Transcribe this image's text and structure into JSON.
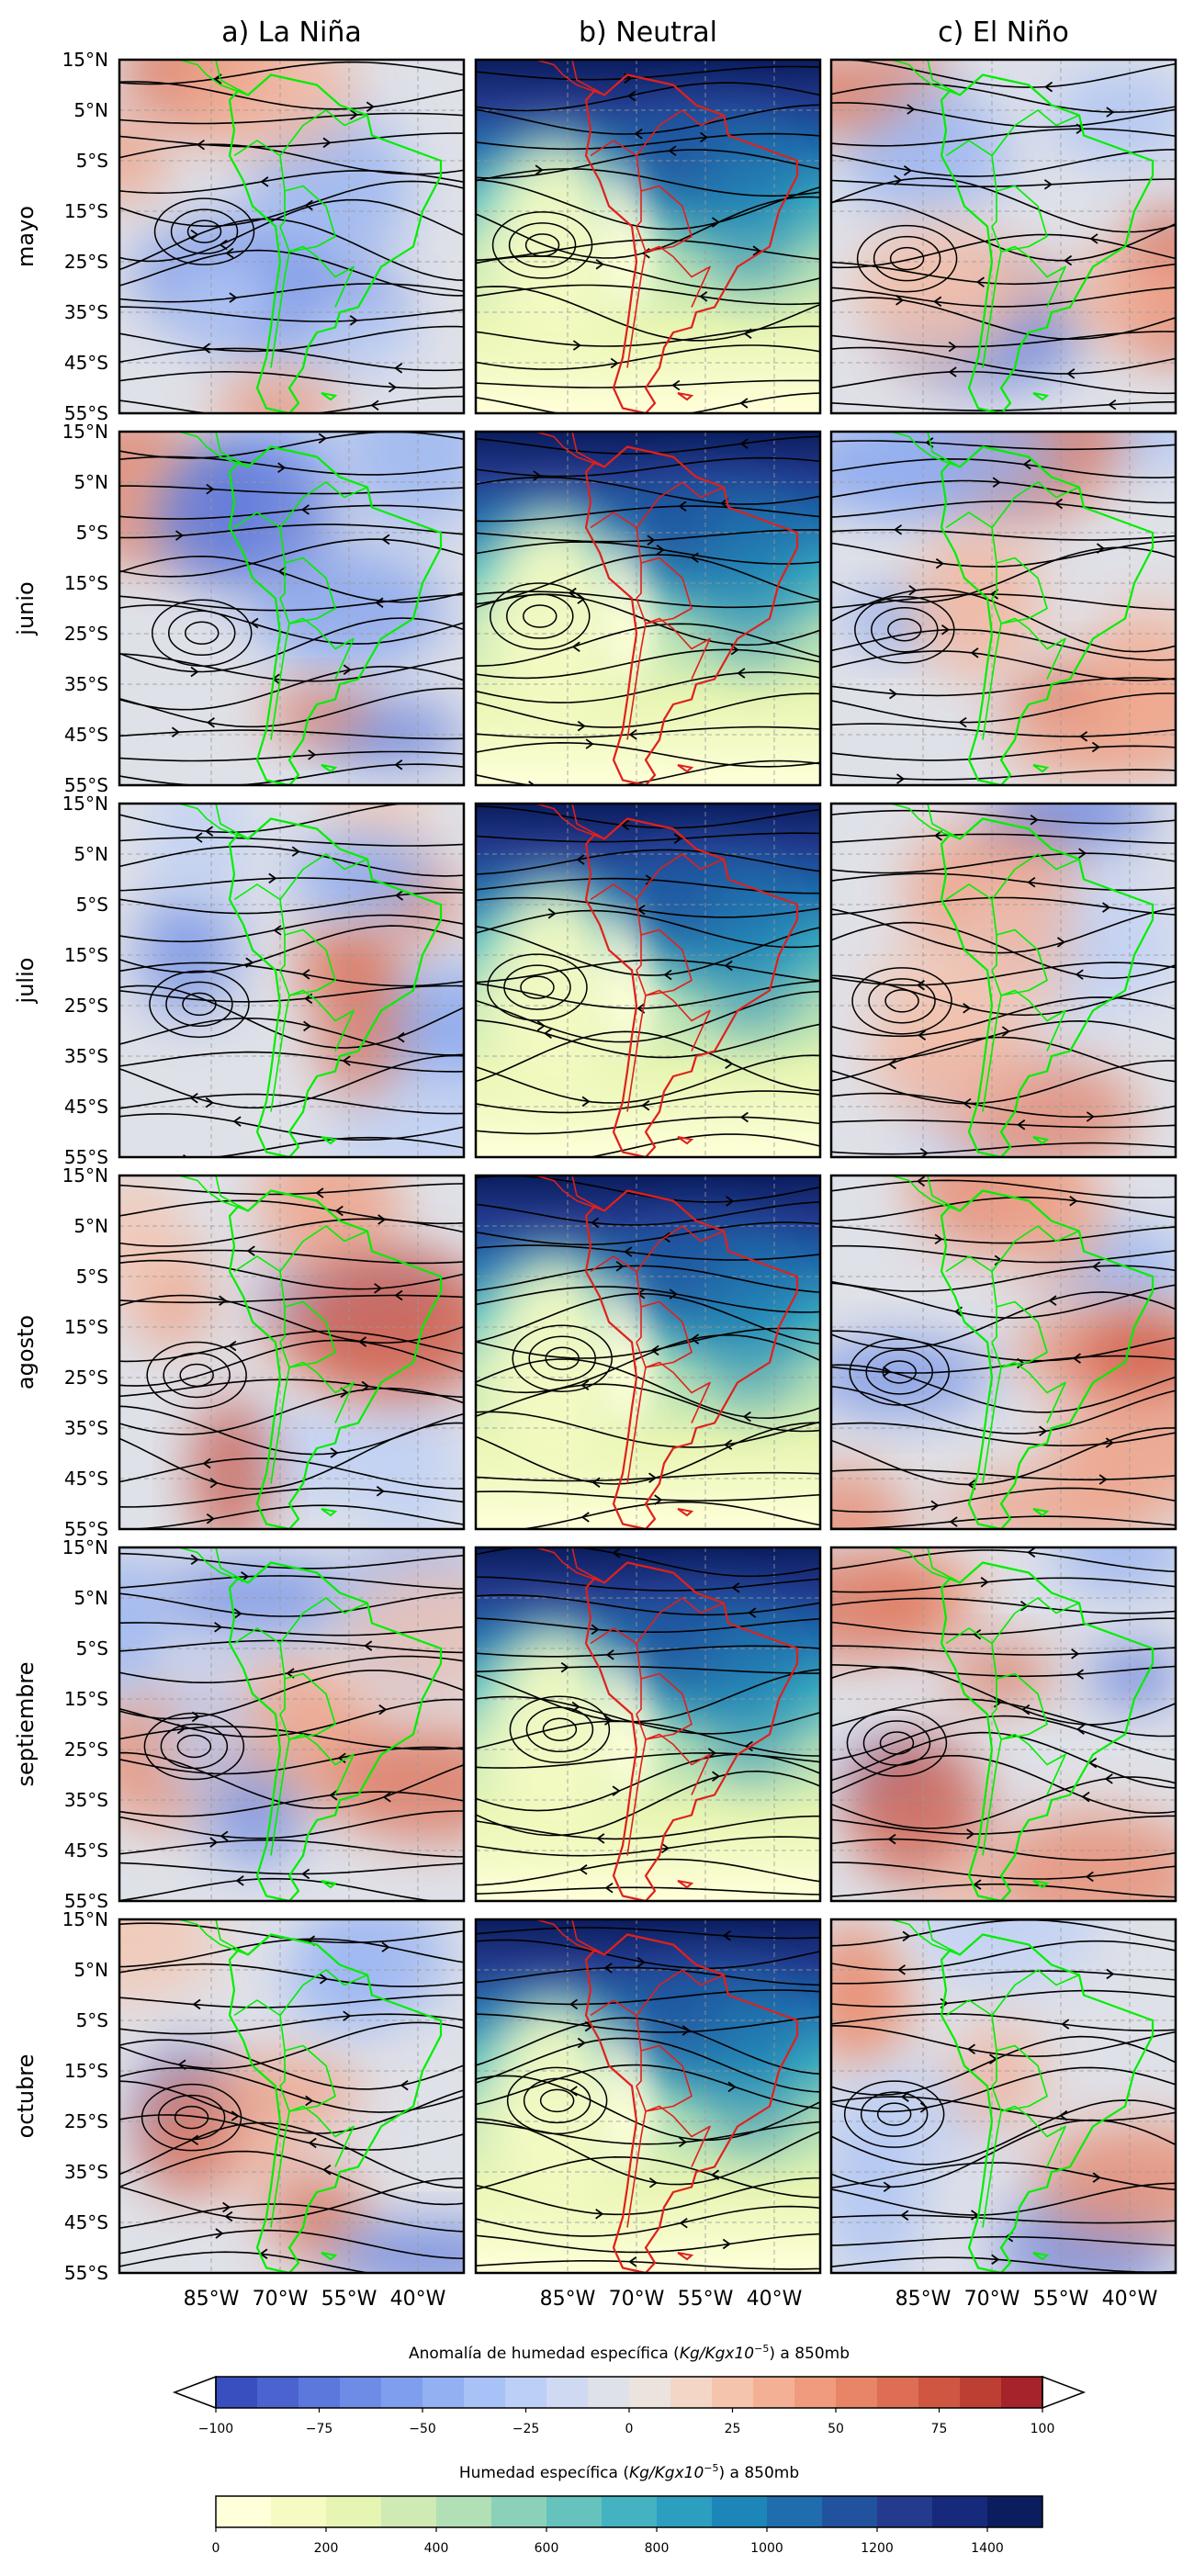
{
  "chart_data": {
    "type": "heatmap",
    "title": "",
    "columns": [
      "a) La Niña",
      "b) Neutral",
      "c) El Niño"
    ],
    "rows": [
      "mayo",
      "junio",
      "julio",
      "agosto",
      "septiembre",
      "octubre"
    ],
    "lat_ticks": [
      "15°N",
      "5°N",
      "5°S",
      "15°S",
      "25°S",
      "35°S",
      "45°S",
      "55°S"
    ],
    "lat_values": [
      15,
      5,
      -5,
      -15,
      -25,
      -35,
      -45,
      -55
    ],
    "lon_ticks": [
      "85°W",
      "70°W",
      "55°W",
      "40°W"
    ],
    "lon_values": [
      -85,
      -70,
      -55,
      -40
    ],
    "lon_range": [
      -105,
      -30
    ],
    "lat_range": [
      -55,
      15
    ],
    "coastline_colors": {
      "anomaly": "#00ee00",
      "neutral": "#e0201b"
    },
    "streamlines": "wind 850mb",
    "colorbar_anomaly": {
      "label": "Anomalía de humedad específica ($Kg/Kgx10^{-5}$) a 850mb",
      "label_prefix": "Anomalía de humedad específica (",
      "label_unit": "Kg/Kgx10",
      "label_exp": "−5",
      "label_suffix": ") a 850mb",
      "range": [
        -100,
        100
      ],
      "extend": "both",
      "tick_values": [
        -100,
        -75,
        -50,
        -25,
        0,
        25,
        50,
        75,
        100
      ],
      "tick_labels": [
        "−100",
        "−75",
        "−50",
        "−25",
        "0",
        "25",
        "50",
        "75",
        "100"
      ],
      "colors": [
        "#3a4fbf",
        "#4a63cf",
        "#5b78dc",
        "#6d8ce6",
        "#7f9fee",
        "#93b0f3",
        "#a8c1f6",
        "#bccff6",
        "#cfdaf2",
        "#dfe1e8",
        "#ece3de",
        "#f3d6c6",
        "#f5c4ad",
        "#f4b095",
        "#f09b7d",
        "#e88567",
        "#dd6e53",
        "#cf5742",
        "#bd3f34",
        "#a7232b"
      ]
    },
    "colorbar_neutral": {
      "label": "Humedad específica ($Kg/Kgx10^{-5}$) a 850mb",
      "label_prefix": "Humedad específica (",
      "label_unit": "Kg/Kgx10",
      "label_exp": "−5",
      "label_suffix": ") a 850mb",
      "range": [
        0,
        1500
      ],
      "extend": "neither",
      "tick_values": [
        0,
        200,
        400,
        600,
        800,
        1000,
        1200,
        1400
      ],
      "tick_labels": [
        "0",
        "200",
        "400",
        "600",
        "800",
        "1000",
        "1200",
        "1400"
      ],
      "colors": [
        "#ffffd9",
        "#f5fbc3",
        "#e7f5b2",
        "#cfeab3",
        "#b1dfb6",
        "#8bd1b9",
        "#66c2bc",
        "#43b3c1",
        "#2c9ec0",
        "#1d86b8",
        "#1f6dad",
        "#21529e",
        "#233a8d",
        "#16297a",
        "#0b1d5e"
      ]
    }
  }
}
